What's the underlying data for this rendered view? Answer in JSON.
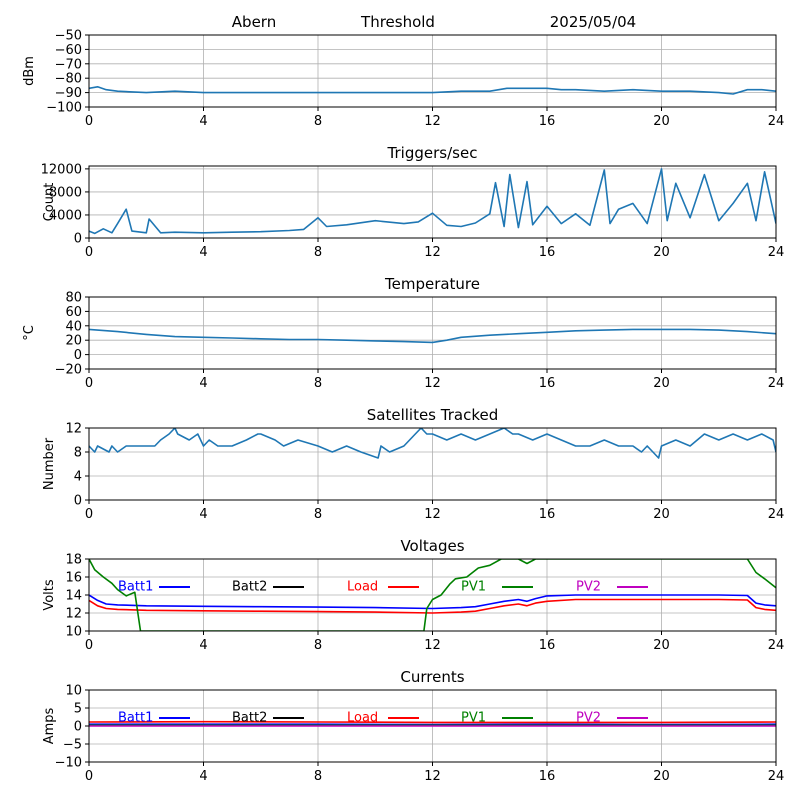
{
  "header": {
    "site": "Abern",
    "label": "Threshold",
    "date": "2025/05/04"
  },
  "x_ticks": [
    0,
    4,
    8,
    12,
    16,
    20,
    24
  ],
  "xlim": [
    0,
    24
  ],
  "chart_data": [
    {
      "type": "line",
      "title": "",
      "ylabel": "dBm",
      "ylim": [
        -100,
        -50
      ],
      "yticks": [
        -100,
        -90,
        -80,
        -70,
        -60,
        -50
      ],
      "grid": true,
      "series": [
        {
          "color": "#1f77b4",
          "x": [
            0,
            0.3,
            0.6,
            1,
            2,
            3,
            4,
            6,
            8,
            10,
            12,
            13,
            14,
            14.6,
            15,
            16,
            16.5,
            17,
            18,
            19,
            20,
            21,
            22,
            22.5,
            23,
            23.5,
            24
          ],
          "y": [
            -87,
            -86,
            -88,
            -89,
            -90,
            -89,
            -90,
            -90,
            -90,
            -90,
            -90,
            -89,
            -89,
            -87,
            -87,
            -87,
            -88,
            -88,
            -89,
            -88,
            -89,
            -89,
            -90,
            -91,
            -88,
            -88,
            -89
          ]
        }
      ]
    },
    {
      "type": "line",
      "title": "Triggers/sec",
      "ylabel": "Count",
      "ylim": [
        0,
        12500
      ],
      "yticks": [
        0,
        4000,
        8000,
        12000
      ],
      "grid": true,
      "series": [
        {
          "color": "#1f77b4",
          "x": [
            0,
            0.2,
            0.5,
            0.8,
            1.0,
            1.3,
            1.5,
            2.0,
            2.1,
            2.5,
            3,
            4,
            5,
            6,
            7,
            7.5,
            8,
            8.3,
            9,
            10,
            11,
            11.5,
            12,
            12.5,
            13,
            13.5,
            14,
            14.2,
            14.5,
            14.7,
            15,
            15.3,
            15.5,
            16,
            16.5,
            17,
            17.5,
            18,
            18.2,
            18.5,
            19,
            19.5,
            20,
            20.2,
            20.5,
            21,
            21.5,
            22,
            22.5,
            23,
            23.3,
            23.6,
            24
          ],
          "y": [
            1200,
            800,
            1600,
            900,
            2500,
            5000,
            1200,
            900,
            3300,
            900,
            1000,
            900,
            1000,
            1100,
            1300,
            1500,
            3500,
            2000,
            2300,
            3000,
            2500,
            2800,
            4300,
            2200,
            2000,
            2600,
            4200,
            9600,
            2000,
            11000,
            1800,
            9800,
            2300,
            5500,
            2500,
            4200,
            2200,
            11800,
            2500,
            5000,
            6000,
            2500,
            12000,
            3000,
            9500,
            3500,
            11000,
            3000,
            6000,
            9500,
            3000,
            11500,
            2500
          ]
        }
      ]
    },
    {
      "type": "line",
      "title": "Temperature",
      "ylabel": "°C",
      "ylim": [
        -20,
        80
      ],
      "yticks": [
        -20,
        0,
        20,
        40,
        60,
        80
      ],
      "grid": true,
      "series": [
        {
          "color": "#1f77b4",
          "x": [
            0,
            1,
            2,
            3,
            4,
            5,
            6,
            7,
            8,
            9,
            10,
            11,
            12,
            12.5,
            13,
            14,
            15,
            16,
            17,
            18,
            19,
            20,
            21,
            22,
            23,
            24
          ],
          "y": [
            35,
            32,
            28,
            25,
            24,
            23,
            22,
            21,
            21,
            20,
            19,
            18,
            17,
            20,
            24,
            27,
            29,
            31,
            33,
            34,
            35,
            35,
            35,
            34,
            32,
            29
          ]
        }
      ]
    },
    {
      "type": "line",
      "title": "Satellites Tracked",
      "ylabel": "Number",
      "ylim": [
        0,
        12
      ],
      "yticks": [
        0,
        4,
        8,
        12
      ],
      "grid": true,
      "series": [
        {
          "color": "#1f77b4",
          "x": [
            0,
            0.2,
            0.3,
            0.7,
            0.8,
            1.0,
            1.3,
            2.3,
            2.5,
            2.8,
            3.0,
            3.1,
            3.5,
            3.8,
            4.0,
            4.2,
            4.5,
            5.0,
            5.5,
            5.9,
            6.0,
            6.5,
            6.8,
            7.3,
            8.0,
            8.5,
            9.0,
            9.5,
            10.1,
            10.2,
            10.5,
            11.0,
            11.4,
            11.6,
            11.8,
            12.0,
            12.5,
            13.0,
            13.5,
            14.0,
            14.5,
            14.8,
            15.0,
            15.5,
            16.0,
            16.5,
            17.0,
            17.5,
            18.0,
            18.5,
            19.0,
            19.3,
            19.5,
            19.9,
            20.0,
            20.5,
            21.0,
            21.5,
            22.0,
            22.5,
            23.0,
            23.5,
            23.9,
            24.0
          ],
          "y": [
            9,
            8,
            9,
            8,
            9,
            8,
            9,
            9,
            10,
            11,
            12,
            11,
            10,
            11,
            9,
            10,
            9,
            9,
            10,
            11,
            11,
            10,
            9,
            10,
            9,
            8,
            9,
            8,
            7,
            9,
            8,
            9,
            11,
            12,
            11,
            11,
            10,
            11,
            10,
            11,
            12,
            11,
            11,
            10,
            11,
            10,
            9,
            9,
            10,
            9,
            9,
            8,
            9,
            7,
            9,
            10,
            9,
            11,
            10,
            11,
            10,
            11,
            10,
            8
          ]
        }
      ]
    },
    {
      "type": "line",
      "title": "Voltages",
      "ylabel": "Volts",
      "ylim": [
        10,
        18
      ],
      "yticks": [
        10,
        12,
        14,
        16,
        18
      ],
      "grid": true,
      "legend": "inline-top",
      "series": [
        {
          "name": "Batt1",
          "color": "#0000ff",
          "x": [
            0,
            0.3,
            0.6,
            1,
            2,
            4,
            6,
            8,
            10,
            12,
            13,
            13.5,
            14,
            14.5,
            15,
            15.3,
            15.6,
            16,
            17,
            18,
            19,
            20,
            21,
            22,
            23,
            23.3,
            23.6,
            24
          ],
          "y": [
            14,
            13.4,
            13.0,
            12.9,
            12.8,
            12.75,
            12.7,
            12.65,
            12.6,
            12.5,
            12.6,
            12.7,
            13.0,
            13.3,
            13.5,
            13.3,
            13.6,
            13.9,
            14.0,
            14.0,
            14.0,
            14.0,
            14.0,
            14.0,
            13.95,
            13.1,
            12.9,
            12.8
          ]
        },
        {
          "name": "Batt2",
          "color": "#000000",
          "x": [],
          "y": []
        },
        {
          "name": "Load",
          "color": "#ff0000",
          "x": [
            0,
            0.3,
            0.6,
            1,
            2,
            4,
            6,
            8,
            10,
            12,
            13,
            13.5,
            14,
            14.5,
            15,
            15.3,
            15.6,
            16,
            17,
            18,
            19,
            20,
            21,
            22,
            23,
            23.3,
            23.6,
            24
          ],
          "y": [
            13.4,
            12.8,
            12.5,
            12.4,
            12.3,
            12.25,
            12.2,
            12.15,
            12.1,
            12.0,
            12.1,
            12.2,
            12.5,
            12.8,
            13.0,
            12.8,
            13.1,
            13.3,
            13.5,
            13.5,
            13.5,
            13.5,
            13.5,
            13.5,
            13.45,
            12.6,
            12.4,
            12.3
          ]
        },
        {
          "name": "PV1",
          "color": "#008000",
          "x": [
            0,
            0.2,
            0.5,
            0.8,
            1.0,
            1.3,
            1.6,
            1.8,
            11.7,
            11.8,
            12.0,
            12.3,
            12.6,
            12.8,
            13.2,
            13.6,
            14.0,
            14.4,
            15.0,
            15.3,
            15.6,
            16.0,
            23.0,
            23.3,
            23.6,
            24
          ],
          "y": [
            18,
            16.8,
            16.0,
            15.3,
            14.6,
            13.9,
            14.3,
            10,
            10,
            12.5,
            13.5,
            14.0,
            15.2,
            15.8,
            16.0,
            17.0,
            17.3,
            18,
            18,
            17.5,
            18,
            18,
            18,
            16.5,
            15.8,
            14.8
          ]
        },
        {
          "name": "PV2",
          "color": "#bf00bf",
          "x": [],
          "y": []
        }
      ]
    },
    {
      "type": "line",
      "title": "Currents",
      "ylabel": "Amps",
      "ylim": [
        -10,
        10
      ],
      "yticks": [
        -10,
        -5,
        0,
        5,
        10
      ],
      "grid": true,
      "legend": "inline-top",
      "series": [
        {
          "name": "Batt1",
          "color": "#0000ff",
          "x": [
            0,
            4,
            8,
            12,
            16,
            20,
            24
          ],
          "y": [
            0.5,
            0.5,
            0.5,
            0.4,
            0.5,
            0.4,
            0.5
          ]
        },
        {
          "name": "Batt2",
          "color": "#000000",
          "x": [],
          "y": []
        },
        {
          "name": "Load",
          "color": "#ff0000",
          "x": [
            0,
            4,
            8,
            12,
            16,
            20,
            24
          ],
          "y": [
            1.1,
            1.2,
            1.1,
            1.0,
            1.0,
            1.0,
            1.1
          ]
        },
        {
          "name": "PV1",
          "color": "#008000",
          "x": [
            0,
            4,
            8,
            12,
            16,
            20,
            24
          ],
          "y": [
            0.2,
            0.2,
            0.2,
            0.2,
            0.2,
            0.2,
            0.2
          ]
        },
        {
          "name": "PV2",
          "color": "#bf00bf",
          "x": [
            0,
            4,
            8,
            12,
            16,
            20,
            24
          ],
          "y": [
            0,
            0,
            0,
            0,
            0,
            0,
            0
          ]
        }
      ]
    }
  ]
}
